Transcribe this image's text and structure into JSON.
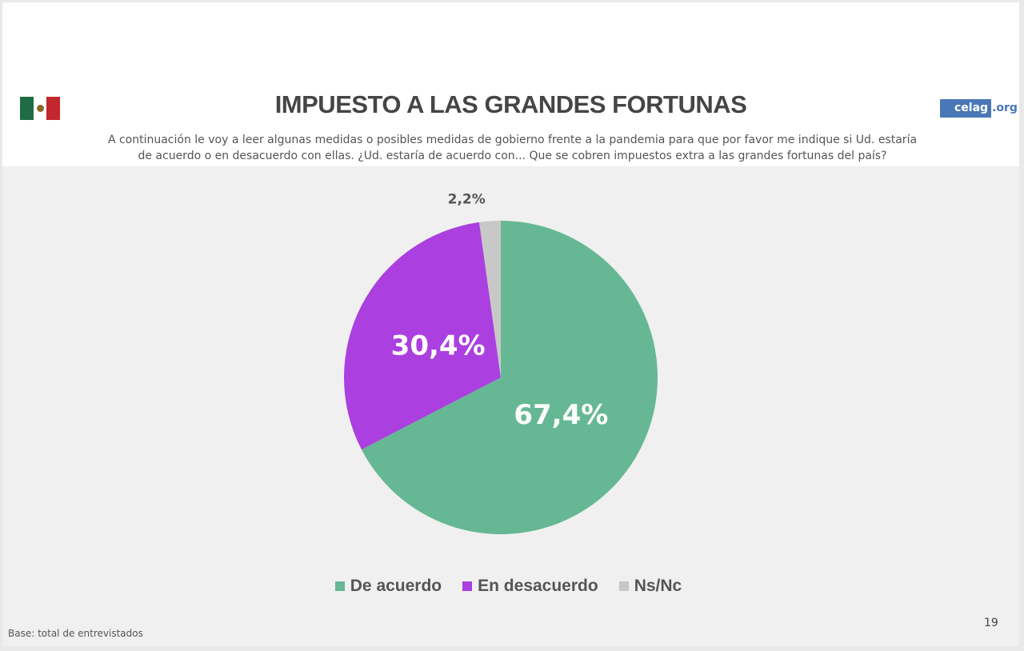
{
  "title": "IMPUESTO A LAS GRANDES FORTUNAS",
  "question": "A continuación le voy a leer algunas medidas o posibles medidas de gobierno frente a la pandemia para que por favor me indique si Ud. estaría de acuerdo o en desacuerdo con ellas. ¿Ud. estaría de acuerdo con... Que se cobren impuestos extra a las grandes fortunas del país?",
  "logo": {
    "main": "celag",
    "ext": ".org",
    "color": "#4a77b8"
  },
  "flag": {
    "colors": [
      "#1f6b45",
      "#ffffff",
      "#c1272d"
    ]
  },
  "footer": {
    "base": "Base: total de entrevistados",
    "page_number": "19"
  },
  "chart_data": {
    "type": "pie",
    "title": "IMPUESTO A LAS GRANDES FORTUNAS",
    "slices": [
      {
        "name": "De acuerdo",
        "value": 67.4,
        "label": "67,4%",
        "color": "#66b894"
      },
      {
        "name": "En desacuerdo",
        "value": 30.4,
        "label": "30,4%",
        "color": "#ab3fe0"
      },
      {
        "name": "Ns/Nc",
        "value": 2.2,
        "label": "2,2%",
        "color": "#c8c8c8"
      }
    ],
    "start_angle_deg": 0,
    "direction": "clockwise",
    "legend": "bottom"
  }
}
